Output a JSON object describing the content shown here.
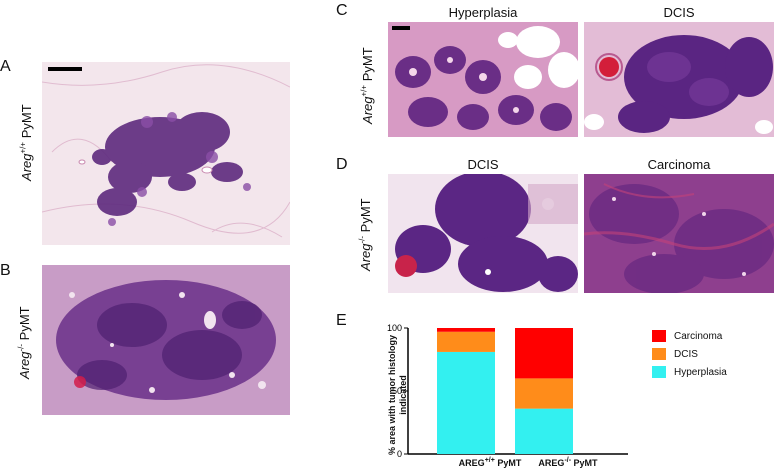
{
  "panels": {
    "A": {
      "letter": "A",
      "row_label": {
        "gene": "Areg",
        "sup": "+/+",
        "suffix": " PyMT"
      }
    },
    "B": {
      "letter": "B",
      "row_label": {
        "gene": "Areg",
        "sup": "-/-",
        "suffix": " PyMT"
      }
    },
    "C": {
      "letter": "C",
      "row_label": {
        "gene": "Areg",
        "sup": "+/+",
        "suffix": " PyMT"
      },
      "titles": [
        "Hyperplasia",
        "DCIS"
      ]
    },
    "D": {
      "letter": "D",
      "row_label": {
        "gene": "Areg",
        "sup": "-/-",
        "suffix": " PyMT"
      },
      "titles": [
        "DCIS",
        "Carcinoma"
      ]
    },
    "E": {
      "letter": "E"
    }
  },
  "colors": {
    "carcinoma": "#ff0000",
    "dcis": "#ff8c1a",
    "hyperplasia": "#33f0f0",
    "tissue_pink": "#e8c8dc",
    "tissue_purple": "#5e2a7e"
  },
  "chart_data": {
    "type": "bar",
    "stacked": true,
    "categories": [
      {
        "gene": "AREG",
        "sup": "+/+",
        "suffix": " PyMT"
      },
      {
        "gene": "AREG",
        "sup": "-/-",
        "suffix": " PyMT"
      }
    ],
    "series": [
      {
        "name": "Hyperplasia",
        "color": "#33f0f0",
        "values": [
          81,
          36
        ]
      },
      {
        "name": "DCIS",
        "color": "#ff8c1a",
        "values": [
          16,
          24
        ]
      },
      {
        "name": "Carcinoma",
        "color": "#ff0000",
        "values": [
          3,
          40
        ]
      }
    ],
    "legend_order": [
      "Carcinoma",
      "DCIS",
      "Hyperplasia"
    ],
    "ylabel": "% area with tumor histology indicated",
    "yticks": [
      0,
      50,
      100
    ],
    "ylim": [
      0,
      100
    ],
    "grid": false,
    "legend": "right"
  }
}
